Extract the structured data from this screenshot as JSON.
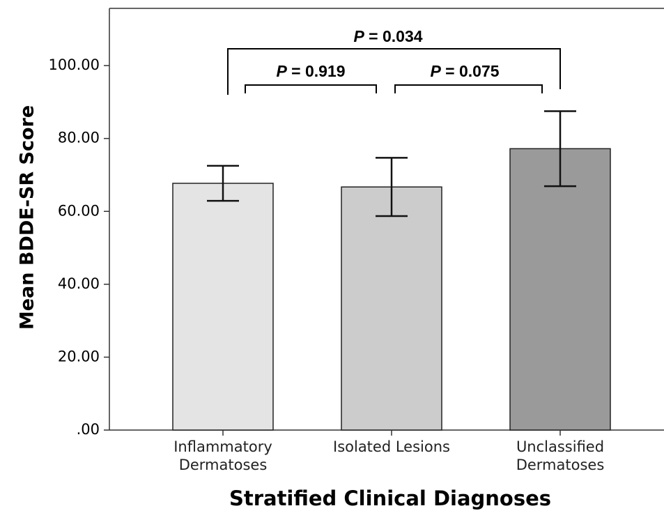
{
  "chart_data": {
    "type": "bar",
    "x_label": "Stratified Clinical Diagnoses",
    "y_label": "Mean BDDE-SR Score",
    "categories": [
      "Inflammatory\nDermatoses",
      "Isolated Lesions",
      "Unclassified\nDermatoses"
    ],
    "values": [
      67.7,
      66.7,
      77.2
    ],
    "errors": [
      4.8,
      8.0,
      10.3
    ],
    "colors": [
      "#e4e4e4",
      "#cccccc",
      "#9a9a9a"
    ],
    "ylim": [
      0,
      115.7
    ],
    "yticks": [
      {
        "value": 0,
        "label": ".00"
      },
      {
        "value": 20,
        "label": "20.00"
      },
      {
        "value": 40,
        "label": "40.00"
      },
      {
        "value": 60,
        "label": "60.00"
      },
      {
        "value": 80,
        "label": "80.00"
      },
      {
        "value": 100,
        "label": "100.00"
      }
    ],
    "annotations": [
      "P = 0.034",
      "P = 0.919",
      "P = 0.075"
    ]
  }
}
